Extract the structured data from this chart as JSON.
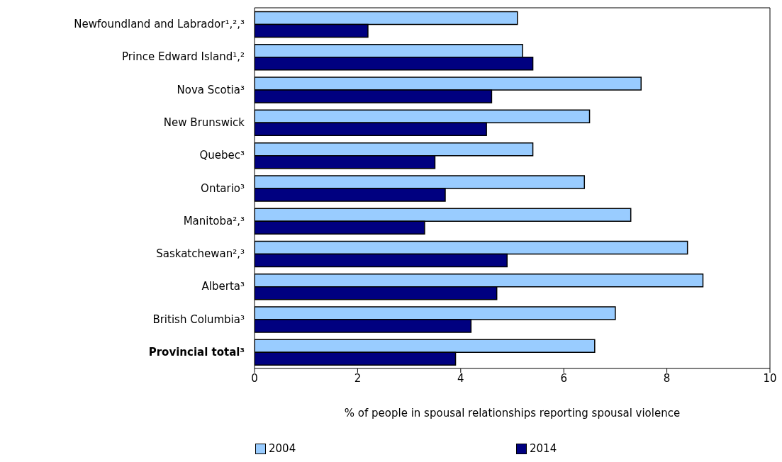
{
  "chart_data": {
    "type": "bar",
    "orientation": "horizontal",
    "xlabel": "% of people in spousal relationships reporting spousal violence",
    "categories": [
      "Newfoundland and Labrador¹,²,³",
      "Prince Edward Island¹,²",
      "Nova Scotia³",
      "New Brunswick",
      "Quebec³",
      "Ontario³",
      "Manitoba²,³",
      "Saskatchewan²,³",
      "Alberta³",
      "British Columbia³",
      "Provincial total³"
    ],
    "series": [
      {
        "name": "2004",
        "color": "#99ccff",
        "values": [
          5.1,
          5.2,
          7.5,
          6.5,
          5.4,
          6.4,
          7.3,
          8.4,
          8.7,
          7.0,
          6.6
        ]
      },
      {
        "name": "2014",
        "color": "#000080",
        "values": [
          2.2,
          5.4,
          4.6,
          4.5,
          3.5,
          3.7,
          3.3,
          4.9,
          4.7,
          4.2,
          3.9
        ]
      }
    ],
    "xlim": [
      0,
      10
    ],
    "xticks": [
      0,
      2,
      4,
      6,
      8,
      10
    ],
    "grid": false,
    "legend": "bottom"
  }
}
